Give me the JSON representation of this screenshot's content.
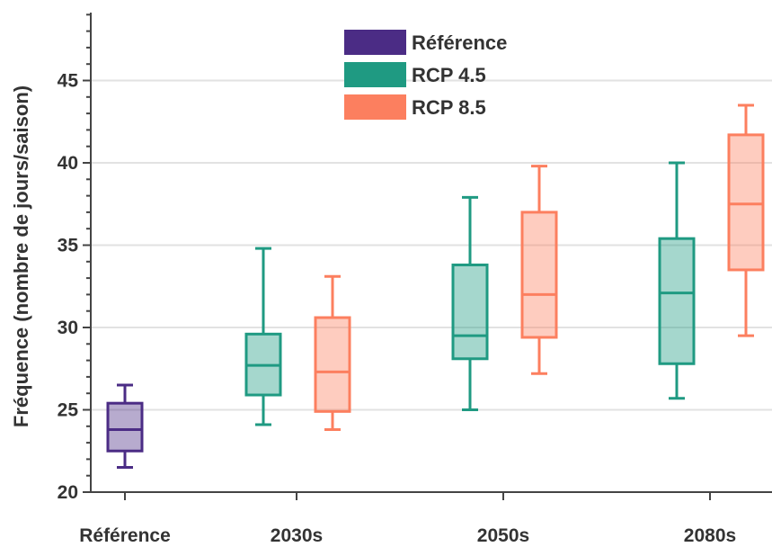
{
  "chart_data": {
    "type": "boxplot",
    "title": "",
    "xlabel": "",
    "ylabel": "Fréquence (nombre de jours/saison)",
    "ylim": [
      20,
      49
    ],
    "yticks": [
      20,
      25,
      30,
      35,
      40,
      45
    ],
    "grid": "horizontal",
    "legend_position": "top-center",
    "categories": [
      "Référence",
      "2030s",
      "2050s",
      "2080s"
    ],
    "series": [
      {
        "name": "Référence",
        "color": "#4b2c85",
        "boxes": [
          {
            "category": "Référence",
            "whisker_low": 21.5,
            "q1": 22.5,
            "median": 23.8,
            "q3": 25.4,
            "whisker_high": 26.5
          }
        ]
      },
      {
        "name": "RCP 4.5",
        "color": "#1f9a82",
        "boxes": [
          {
            "category": "2030s",
            "whisker_low": 24.1,
            "q1": 25.9,
            "median": 27.7,
            "q3": 29.6,
            "whisker_high": 34.8
          },
          {
            "category": "2050s",
            "whisker_low": 25.0,
            "q1": 28.1,
            "median": 29.5,
            "q3": 33.8,
            "whisker_high": 37.9
          },
          {
            "category": "2080s",
            "whisker_low": 25.7,
            "q1": 27.8,
            "median": 32.1,
            "q3": 35.4,
            "whisker_high": 40.0
          }
        ]
      },
      {
        "name": "RCP 8.5",
        "color": "#fc7f5f",
        "boxes": [
          {
            "category": "2030s",
            "whisker_low": 23.8,
            "q1": 24.9,
            "median": 27.3,
            "q3": 30.6,
            "whisker_high": 33.1
          },
          {
            "category": "2050s",
            "whisker_low": 27.2,
            "q1": 29.4,
            "median": 32.0,
            "q3": 37.0,
            "whisker_high": 39.8
          },
          {
            "category": "2080s",
            "whisker_low": 29.5,
            "q1": 33.5,
            "median": 37.5,
            "q3": 41.7,
            "whisker_high": 43.5
          }
        ]
      }
    ]
  }
}
